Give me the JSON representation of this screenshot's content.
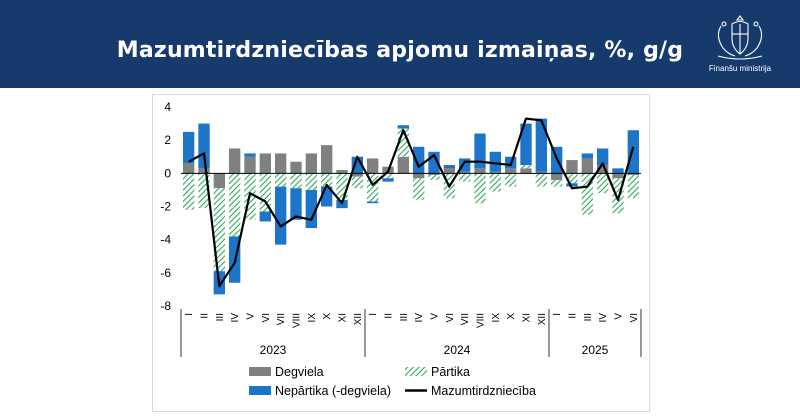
{
  "header": {
    "title": "Mazumtirdzniecības apjomu izmaiņas, %, g/g",
    "logo_text": "Finanšu ministrija"
  },
  "colors": {
    "header_bg": "#153a6b",
    "fuel": "#808080",
    "food": "#2eaa5c",
    "nonfood": "#1c75c8",
    "total_line": "#000000"
  },
  "chart_data": {
    "type": "bar",
    "stacked": true,
    "title": "Mazumtirdzniecības apjomu izmaiņas, %, g/g",
    "ylim": [
      -8,
      4
    ],
    "yticks": [
      4,
      2,
      0,
      -2,
      -4,
      -6,
      -8
    ],
    "categories": [
      "I",
      "II",
      "III",
      "IV",
      "V",
      "VI",
      "VII",
      "VIII",
      "IX",
      "X",
      "XI",
      "XII",
      "I",
      "II",
      "III",
      "IV",
      "V",
      "VI",
      "VII",
      "VIII",
      "IX",
      "X",
      "XI",
      "XII",
      "I",
      "II",
      "III",
      "IV",
      "V",
      "VI"
    ],
    "years": [
      {
        "label": "2023",
        "start": 0,
        "end": 11
      },
      {
        "label": "2024",
        "start": 12,
        "end": 23
      },
      {
        "label": "2025",
        "start": 24,
        "end": 29
      }
    ],
    "series": [
      {
        "name": "Degviela",
        "kind": "bar",
        "values": [
          0.6,
          0.3,
          -0.9,
          1.5,
          1.0,
          1.2,
          1.2,
          0.7,
          1.2,
          1.7,
          0.2,
          -0.2,
          0.9,
          0.4,
          1.0,
          -0.3,
          -0.1,
          0.3,
          0.1,
          0.3,
          0.1,
          0.3,
          0.3,
          0.1,
          -0.4,
          0.8,
          0.9,
          0.5,
          -0.3,
          -0.1
        ]
      },
      {
        "name": "Pārtika",
        "kind": "bar",
        "values": [
          -2.2,
          -2.1,
          -5.0,
          -3.8,
          -2.8,
          -2.3,
          -0.8,
          -0.9,
          -1.0,
          -0.8,
          -1.6,
          -0.7,
          -1.7,
          -0.3,
          1.7,
          -1.3,
          -0.3,
          -1.5,
          -0.5,
          -1.8,
          -1.1,
          -0.8,
          0.2,
          -0.8,
          -0.4,
          -0.6,
          -2.5,
          -1.2,
          -2.1,
          -1.4
        ]
      },
      {
        "name": "Nepārtika (-degviela)",
        "kind": "bar",
        "values": [
          1.9,
          2.7,
          -1.4,
          -2.8,
          0.2,
          -0.6,
          -3.5,
          -1.9,
          -2.3,
          -1.2,
          -0.5,
          1.0,
          -0.1,
          -0.2,
          0.2,
          1.6,
          1.3,
          0.2,
          0.8,
          2.1,
          1.2,
          0.7,
          2.5,
          3.2,
          1.6,
          -0.2,
          0.3,
          1.0,
          0.3,
          2.6
        ]
      },
      {
        "name": "Mazumtirdzniecība",
        "kind": "line",
        "values": [
          0.7,
          1.2,
          -6.8,
          -5.4,
          -1.2,
          -1.7,
          -3.2,
          -2.6,
          -2.8,
          -0.7,
          -1.8,
          1.0,
          -0.7,
          0.1,
          2.6,
          0.4,
          1.1,
          -0.8,
          0.7,
          0.7,
          0.6,
          0.5,
          3.3,
          3.2,
          0.9,
          -0.9,
          -0.8,
          0.6,
          -1.6,
          1.6
        ]
      }
    ],
    "legend": {
      "position": "bottom"
    }
  }
}
